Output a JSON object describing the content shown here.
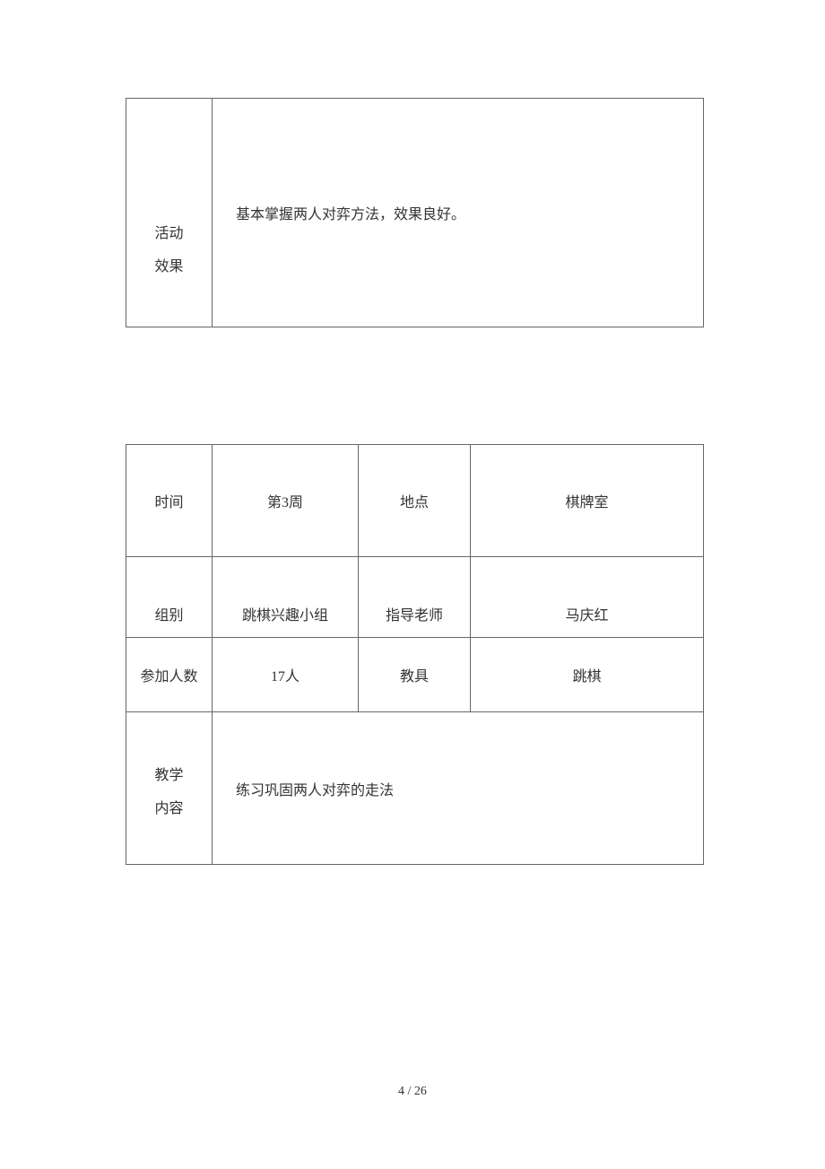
{
  "table1": {
    "label_line1": "活动",
    "label_line2": "效果",
    "content": "基本掌握两人对弈方法，效果良好。"
  },
  "table2": {
    "row1": {
      "c1": "时间",
      "c2": "第3周",
      "c3": "地点",
      "c4": "棋牌室"
    },
    "row2": {
      "c1": "组别",
      "c2": "跳棋兴趣小组",
      "c3": "指导老师",
      "c4": "马庆红"
    },
    "row3": {
      "c1": "参加人数",
      "c2": "17人",
      "c3": "教具",
      "c4": "跳棋"
    },
    "row4": {
      "label_line1": "教学",
      "label_line2": "内容",
      "content": "练习巩固两人对弈的走法"
    }
  },
  "footer": {
    "page_indicator": "4 / 26"
  },
  "styling": {
    "border_color": "#666666",
    "text_color": "#333333",
    "background_color": "#ffffff",
    "font_size_body": 16,
    "font_size_footer": 14,
    "font_family": "SimSun"
  }
}
